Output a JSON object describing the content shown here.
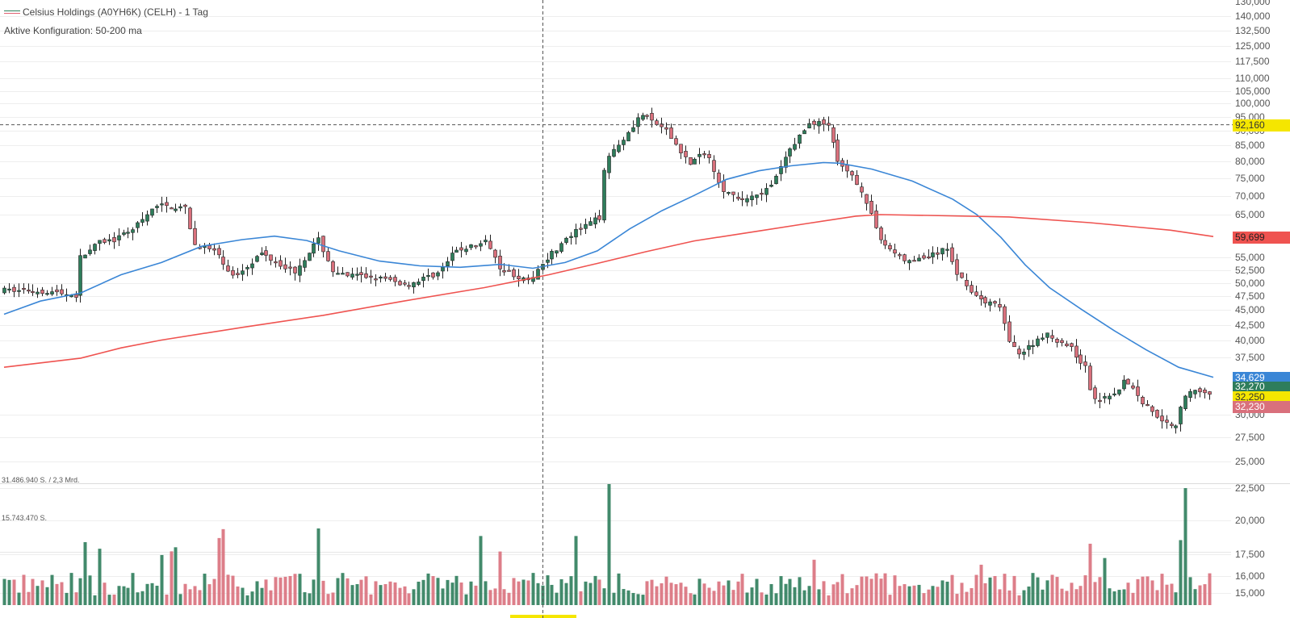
{
  "header": {
    "title": "Celsius Holdings (A0YH6K) (CELH) - 1 Tag",
    "config": "Aktive Konfiguration: 50-200 ma"
  },
  "volume_pane": {
    "max_label": "31.486.940 S. / 2,3 Mrd.",
    "mid_label": "15.743.470 S."
  },
  "price_axis": {
    "ticks": [
      "130,000",
      "140,000",
      "132,500",
      "125,000",
      "117,500",
      "110,000",
      "105,000",
      "100,000",
      "95,000",
      "90,000",
      "85,000",
      "80,000",
      "75,000",
      "70,000",
      "65,000",
      "55,000",
      "52,500",
      "50,000",
      "47,500",
      "45,000",
      "42,500",
      "40,000",
      "37,500",
      "30,000",
      "27,500",
      "25,000",
      "22,500",
      "20,000",
      "17,500",
      "16,000",
      "15,000"
    ]
  },
  "badges": {
    "crosshair": {
      "value": "92,160",
      "bg": "#f5e600",
      "fg": "#333"
    },
    "ma200": {
      "value": "59,699",
      "bg": "#ef5350",
      "fg": "#222"
    },
    "ma50": {
      "value": "34,629",
      "bg": "#3a86d6",
      "fg": "#fff"
    },
    "close": {
      "value": "32,270",
      "bg": "#2e7d5b",
      "fg": "#fff"
    },
    "last": {
      "value": "32,250",
      "bg": "#f5e600",
      "fg": "#333"
    },
    "low": {
      "value": "32,230",
      "bg": "#d9707c",
      "fg": "#fff"
    }
  },
  "colors": {
    "up": "#2e7d5b",
    "down": "#d9707c",
    "ma50": "#3a86d6",
    "ma200": "#ef5350",
    "grid": "#eeeeee"
  },
  "chart_data": {
    "type": "candlestick",
    "title": "Celsius Holdings (A0YH6K) (CELH) - 1 Tag",
    "scale": "log",
    "ylim": [
      24000,
      150000
    ],
    "series": [
      {
        "name": "MA50",
        "points": [
          [
            5,
            44200
          ],
          [
            50,
            46500
          ],
          [
            100,
            48000
          ],
          [
            150,
            51500
          ],
          [
            200,
            54000
          ],
          [
            250,
            57500
          ],
          [
            300,
            59000
          ],
          [
            340,
            59800
          ],
          [
            380,
            58800
          ],
          [
            420,
            56500
          ],
          [
            470,
            54300
          ],
          [
            520,
            53300
          ],
          [
            570,
            53000
          ],
          [
            620,
            53600
          ],
          [
            660,
            52800
          ],
          [
            700,
            54000
          ],
          [
            740,
            56500
          ],
          [
            780,
            61500
          ],
          [
            820,
            66000
          ],
          [
            860,
            70000
          ],
          [
            900,
            74500
          ],
          [
            940,
            77000
          ],
          [
            980,
            78500
          ],
          [
            1020,
            79500
          ],
          [
            1040,
            79300
          ],
          [
            1080,
            77500
          ],
          [
            1130,
            74000
          ],
          [
            1180,
            69000
          ],
          [
            1210,
            65000
          ],
          [
            1240,
            59500
          ],
          [
            1270,
            53500
          ],
          [
            1300,
            49000
          ],
          [
            1340,
            45000
          ],
          [
            1380,
            41500
          ],
          [
            1420,
            38500
          ],
          [
            1460,
            36000
          ],
          [
            1503,
            34629
          ]
        ]
      },
      {
        "name": "MA200",
        "points": [
          [
            5,
            36000
          ],
          [
            100,
            37300
          ],
          [
            150,
            38800
          ],
          [
            200,
            40000
          ],
          [
            300,
            42000
          ],
          [
            400,
            44000
          ],
          [
            500,
            46500
          ],
          [
            600,
            49000
          ],
          [
            680,
            51500
          ],
          [
            740,
            53800
          ],
          [
            800,
            56300
          ],
          [
            860,
            58700
          ],
          [
            940,
            61000
          ],
          [
            1000,
            62800
          ],
          [
            1060,
            64600
          ],
          [
            1090,
            65000
          ],
          [
            1150,
            64800
          ],
          [
            1250,
            64400
          ],
          [
            1350,
            63000
          ],
          [
            1450,
            61200
          ],
          [
            1503,
            59699
          ]
        ]
      }
    ],
    "crosshair": {
      "x": 672,
      "price": 92160
    },
    "last_close": 32250
  }
}
